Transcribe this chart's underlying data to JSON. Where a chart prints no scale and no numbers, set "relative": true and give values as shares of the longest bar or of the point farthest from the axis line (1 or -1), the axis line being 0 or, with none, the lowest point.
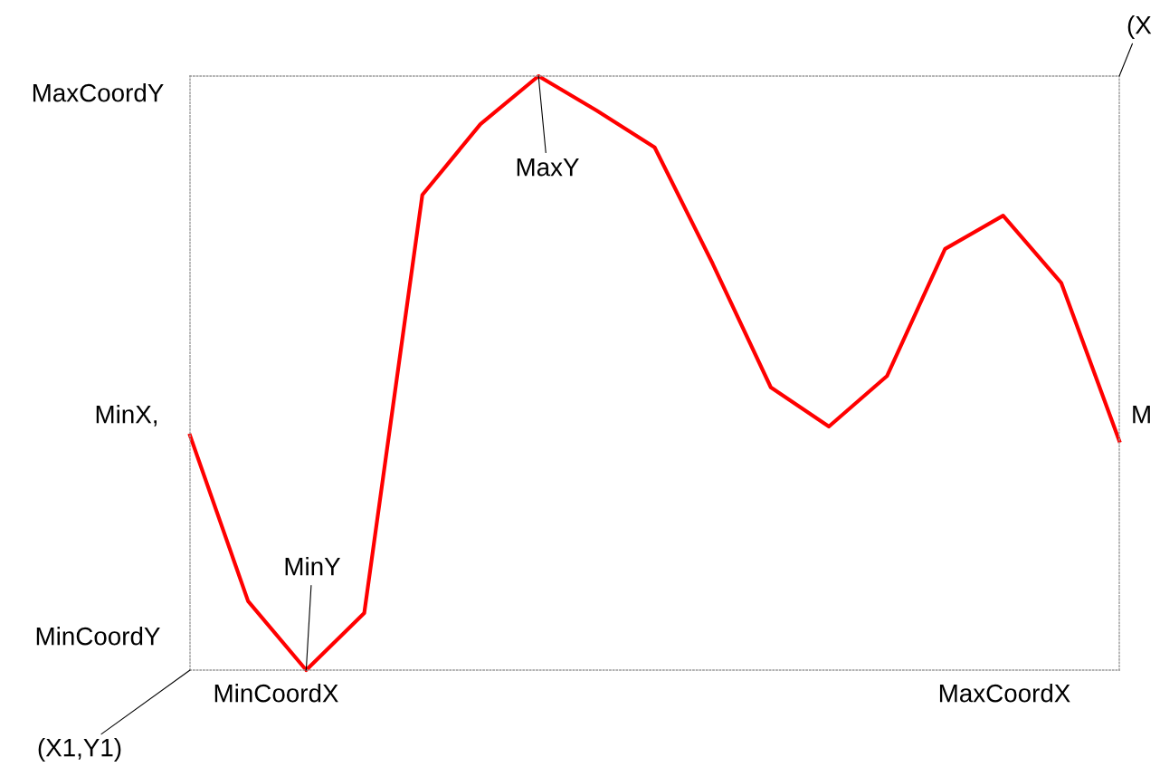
{
  "chart_data": {
    "type": "line",
    "relative": true,
    "grid": false,
    "legend": false,
    "marker": "none",
    "line_style": "solid",
    "categories": [
      null,
      null,
      null,
      null,
      null,
      null,
      null,
      null,
      null,
      null,
      null,
      null,
      null,
      null,
      null,
      null,
      null
    ],
    "series": [
      {
        "color": "#ff0000",
        "values": [
          0.395,
          0.116,
          0,
          0.096,
          0.8,
          0.919,
          1,
          0.942,
          0.88,
          0.684,
          0.476,
          0.41,
          0.495,
          0.709,
          0.765,
          0.652,
          0.386
        ]
      }
    ],
    "annotations": [
      "MaxCoordY",
      "MinX,",
      "MinCoordY",
      "MinCoordX",
      "MaxCoordX",
      "(X1,Y1)",
      "MinY",
      "MaxY",
      "(X",
      "M"
    ]
  }
}
